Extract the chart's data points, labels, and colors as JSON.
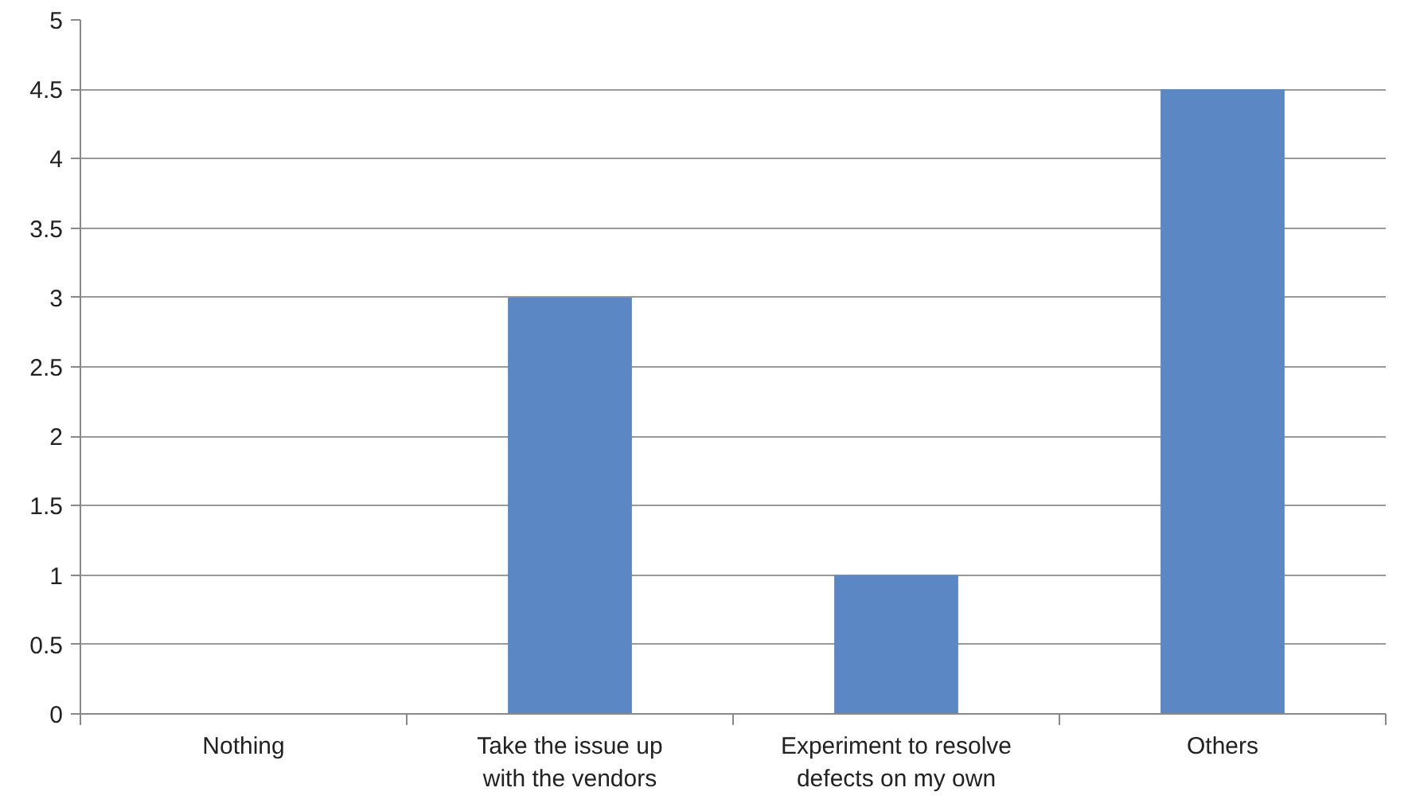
{
  "chart_data": {
    "type": "bar",
    "categories": [
      "Nothing",
      "Take the issue up with the vendors",
      "Experiment to resolve defects on my own",
      "Others"
    ],
    "values": [
      0,
      3,
      1,
      4.5
    ],
    "color": "#5b88c5",
    "ylim": [
      0,
      5
    ],
    "yticks": [
      0,
      0.5,
      1,
      1.5,
      2,
      2.5,
      3,
      3.5,
      4,
      4.5,
      5
    ],
    "grid": "y"
  }
}
